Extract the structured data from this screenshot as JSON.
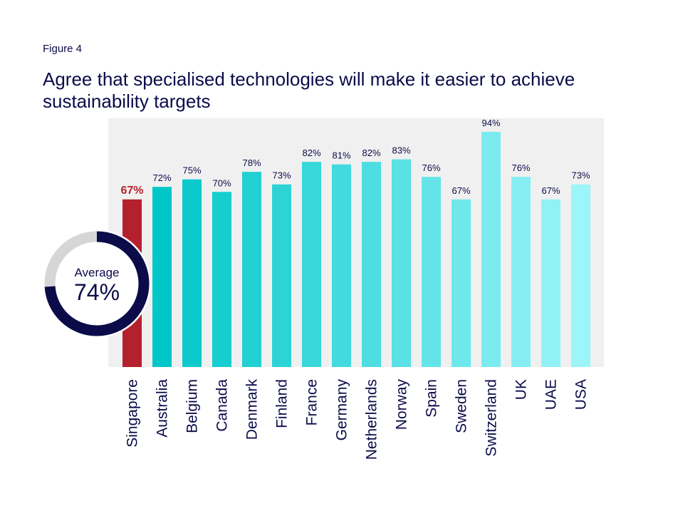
{
  "figure_label": "Figure 4",
  "title": "Agree that specialised technologies will make it easier to achieve sustainability targets",
  "average": {
    "label": "Average",
    "value_text": "74%",
    "value": 74,
    "ring_color": "#0b0b4a",
    "track_color": "#d6d6d6"
  },
  "chart_data": {
    "type": "bar",
    "title": "Agree that specialised technologies will make it easier to achieve sustainability targets",
    "categories": [
      "Singapore",
      "Australia",
      "Belgium",
      "Canada",
      "Denmark",
      "Finland",
      "France",
      "Germany",
      "Netherlands",
      "Norway",
      "Spain",
      "Sweden",
      "Switzerland",
      "UK",
      "UAE",
      "USA"
    ],
    "values": [
      67,
      72,
      75,
      70,
      78,
      73,
      82,
      81,
      82,
      83,
      76,
      67,
      94,
      76,
      67,
      73
    ],
    "data_labels": [
      "67%",
      "72%",
      "75%",
      "70%",
      "78%",
      "73%",
      "82%",
      "81%",
      "82%",
      "83%",
      "76%",
      "67%",
      "94%",
      "76%",
      "67%",
      "73%"
    ],
    "ylim": [
      0,
      100
    ],
    "grid": false,
    "colors": {
      "highlight": "#b5202e",
      "gradient_start": "#00c6c8",
      "gradient_end": "#9cf5f9",
      "plot_background": "#f0f0f0",
      "label_text": "#0b0b4a"
    },
    "highlight_category": "Singapore"
  }
}
